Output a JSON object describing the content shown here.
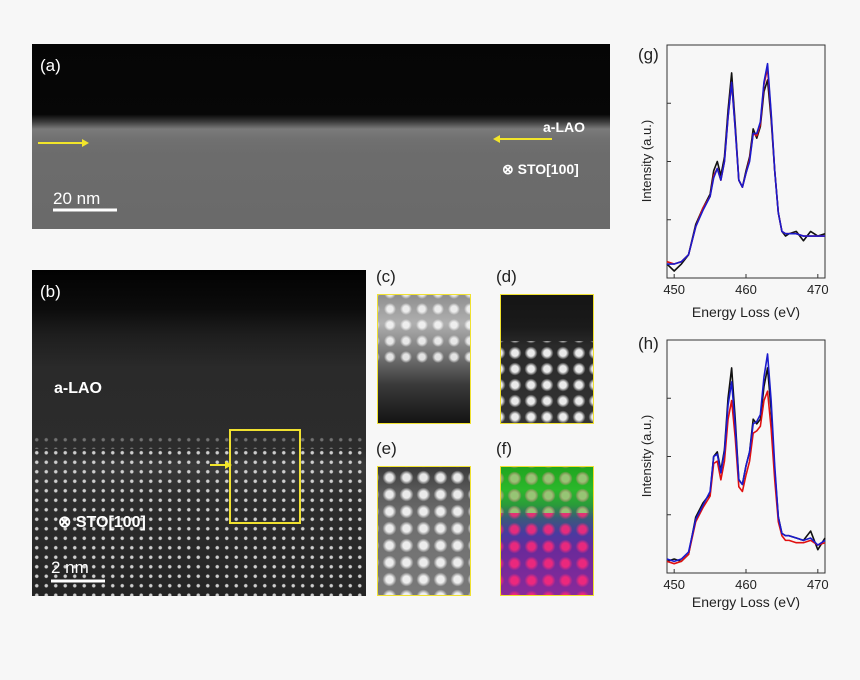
{
  "figure": {
    "panel_a": {
      "letter": "(a)",
      "film_label": "a-LAO",
      "substrate_label": "⊗ STO[100]",
      "scale_bar": "20 nm"
    },
    "panel_b": {
      "letter": "(b)",
      "film_label": "a-LAO",
      "substrate_label": "⊗ STO[100]",
      "scale_bar": "2  nm"
    },
    "insets": {
      "c": "(c)",
      "d": "(d)",
      "e": "(e)",
      "f": "(f)"
    },
    "colors": {
      "highlight_yellow": "#f0e130",
      "arrow_yellow": "#f2e52a",
      "series_black": "#111111",
      "series_red": "#e01010",
      "series_blue": "#1a1acc",
      "series_purple": "#7a2aa0"
    }
  },
  "chart_data": [
    {
      "letter": "(g)",
      "type": "line",
      "xlabel": "Energy Loss (eV)",
      "ylabel": "Intensity (a.u.)",
      "xlim": [
        449,
        471
      ],
      "ylim": [
        0,
        1
      ],
      "xticks": [
        450,
        460,
        470
      ],
      "series": [
        {
          "color": "#111111",
          "x": [
            449,
            450,
            451,
            452,
            453,
            454,
            455,
            455.5,
            456,
            456.5,
            457,
            457.5,
            458,
            458.5,
            459,
            459.5,
            460,
            460.5,
            461,
            461.5,
            462,
            462.5,
            463,
            463.5,
            464,
            464.5,
            465,
            465.5,
            466,
            467,
            468,
            469,
            470,
            471
          ],
          "y": [
            0.06,
            0.03,
            0.06,
            0.1,
            0.23,
            0.3,
            0.36,
            0.46,
            0.5,
            0.44,
            0.52,
            0.72,
            0.88,
            0.66,
            0.42,
            0.39,
            0.46,
            0.52,
            0.64,
            0.6,
            0.65,
            0.8,
            0.85,
            0.68,
            0.46,
            0.28,
            0.2,
            0.18,
            0.19,
            0.2,
            0.16,
            0.2,
            0.18,
            0.19
          ]
        },
        {
          "color": "#e01010",
          "x": [
            449,
            450,
            451,
            452,
            453,
            454,
            455,
            455.5,
            456,
            456.5,
            457,
            457.5,
            458,
            458.5,
            459,
            459.5,
            460,
            460.5,
            461,
            461.5,
            462,
            462.5,
            463,
            463.5,
            464,
            464.5,
            465,
            465.5,
            466,
            467,
            468,
            469,
            470,
            471
          ],
          "y": [
            0.07,
            0.06,
            0.07,
            0.1,
            0.22,
            0.3,
            0.35,
            0.44,
            0.47,
            0.42,
            0.5,
            0.69,
            0.84,
            0.64,
            0.42,
            0.39,
            0.45,
            0.51,
            0.62,
            0.61,
            0.66,
            0.83,
            0.9,
            0.7,
            0.46,
            0.28,
            0.2,
            0.19,
            0.19,
            0.19,
            0.18,
            0.18,
            0.18,
            0.18
          ]
        },
        {
          "color": "#1a1acc",
          "x": [
            449,
            450,
            451,
            452,
            453,
            454,
            455,
            455.5,
            456,
            456.5,
            457,
            457.5,
            458,
            458.5,
            459,
            459.5,
            460,
            460.5,
            461,
            461.5,
            462,
            462.5,
            463,
            463.5,
            464,
            464.5,
            465,
            465.5,
            466,
            467,
            468,
            469,
            470,
            471
          ],
          "y": [
            0.06,
            0.06,
            0.07,
            0.1,
            0.22,
            0.29,
            0.35,
            0.43,
            0.47,
            0.42,
            0.5,
            0.69,
            0.84,
            0.64,
            0.42,
            0.39,
            0.45,
            0.5,
            0.62,
            0.62,
            0.67,
            0.84,
            0.92,
            0.71,
            0.46,
            0.28,
            0.2,
            0.19,
            0.19,
            0.19,
            0.18,
            0.18,
            0.18,
            0.18
          ]
        }
      ]
    },
    {
      "letter": "(h)",
      "type": "line",
      "xlabel": "Energy Loss (eV)",
      "ylabel": "Intensity (a.u.)",
      "xlim": [
        449,
        471
      ],
      "ylim": [
        0,
        1
      ],
      "xticks": [
        450,
        460,
        470
      ],
      "series": [
        {
          "color": "#111111",
          "x": [
            449,
            450,
            451,
            452,
            453,
            454,
            455,
            455.5,
            456,
            456.5,
            457,
            457.5,
            458,
            458.5,
            459,
            459.5,
            460,
            460.5,
            461,
            461.5,
            462,
            462.5,
            463,
            463.5,
            464,
            464.5,
            465,
            465.5,
            466,
            467,
            468,
            469,
            470,
            471
          ],
          "y": [
            0.05,
            0.06,
            0.05,
            0.08,
            0.24,
            0.3,
            0.34,
            0.5,
            0.52,
            0.44,
            0.53,
            0.75,
            0.88,
            0.66,
            0.4,
            0.38,
            0.46,
            0.52,
            0.66,
            0.64,
            0.66,
            0.8,
            0.88,
            0.7,
            0.44,
            0.24,
            0.17,
            0.16,
            0.16,
            0.15,
            0.14,
            0.18,
            0.1,
            0.15
          ]
        },
        {
          "color": "#e01010",
          "x": [
            449,
            450,
            451,
            452,
            453,
            454,
            455,
            455.5,
            456,
            456.5,
            457,
            457.5,
            458,
            458.5,
            459,
            459.5,
            460,
            460.5,
            461,
            461.5,
            462,
            462.5,
            463,
            463.5,
            464,
            464.5,
            465,
            465.5,
            466,
            467,
            468,
            469,
            470,
            471
          ],
          "y": [
            0.05,
            0.04,
            0.05,
            0.08,
            0.22,
            0.28,
            0.33,
            0.47,
            0.48,
            0.4,
            0.48,
            0.66,
            0.74,
            0.58,
            0.37,
            0.35,
            0.42,
            0.48,
            0.6,
            0.61,
            0.63,
            0.74,
            0.78,
            0.62,
            0.4,
            0.22,
            0.16,
            0.14,
            0.14,
            0.13,
            0.13,
            0.14,
            0.12,
            0.13
          ]
        },
        {
          "color": "#1a1acc",
          "x": [
            449,
            450,
            451,
            452,
            453,
            454,
            455,
            455.5,
            456,
            456.5,
            457,
            457.5,
            458,
            458.5,
            459,
            459.5,
            460,
            460.5,
            461,
            461.5,
            462,
            462.5,
            463,
            463.5,
            464,
            464.5,
            465,
            465.5,
            466,
            467,
            468,
            469,
            470,
            471
          ],
          "y": [
            0.06,
            0.05,
            0.06,
            0.09,
            0.23,
            0.29,
            0.35,
            0.5,
            0.51,
            0.43,
            0.52,
            0.72,
            0.82,
            0.63,
            0.4,
            0.38,
            0.46,
            0.52,
            0.64,
            0.65,
            0.68,
            0.84,
            0.94,
            0.74,
            0.46,
            0.24,
            0.17,
            0.16,
            0.16,
            0.15,
            0.14,
            0.15,
            0.12,
            0.14
          ]
        }
      ]
    }
  ]
}
